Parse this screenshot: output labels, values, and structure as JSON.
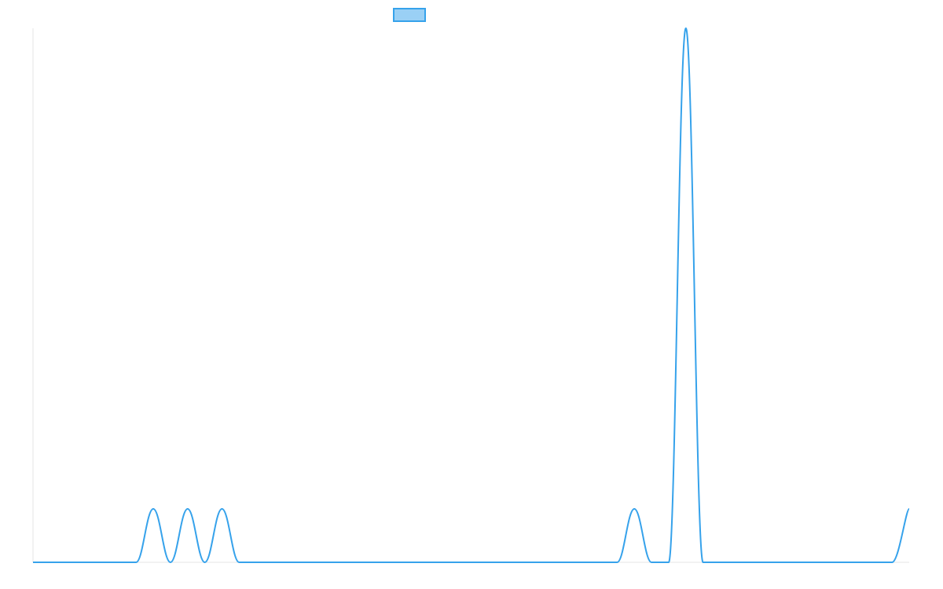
{
  "chart_data": {
    "type": "line",
    "title": "",
    "xlabel": "",
    "ylabel": "",
    "grid": false,
    "legend_position": "top",
    "x": [
      0,
      1,
      2,
      3,
      4,
      5,
      6,
      7,
      8,
      9,
      10,
      11,
      12,
      13,
      14,
      15,
      16,
      17,
      18,
      19,
      20,
      21,
      22,
      23,
      24,
      25,
      26,
      27,
      28,
      29,
      30,
      31,
      32,
      33,
      34,
      35,
      36,
      37,
      38,
      39,
      40,
      41,
      42,
      43,
      44,
      45,
      46,
      47,
      48,
      49,
      50,
      51
    ],
    "ylim": [
      0,
      5
    ],
    "series": [
      {
        "name": "",
        "color": "#36a2eb",
        "values": [
          0,
          0,
          0,
          0,
          0,
          0,
          0,
          0.5,
          0,
          0.5,
          0,
          0.5,
          0,
          0,
          0,
          0,
          0,
          0,
          0,
          0,
          0,
          0,
          0,
          0,
          0,
          0,
          0,
          0,
          0,
          0,
          0,
          0,
          0,
          0,
          0,
          0.5,
          0,
          0,
          5,
          0,
          0,
          0,
          0,
          0,
          0,
          0,
          0,
          0,
          0,
          0,
          0,
          0.5
        ]
      }
    ]
  }
}
